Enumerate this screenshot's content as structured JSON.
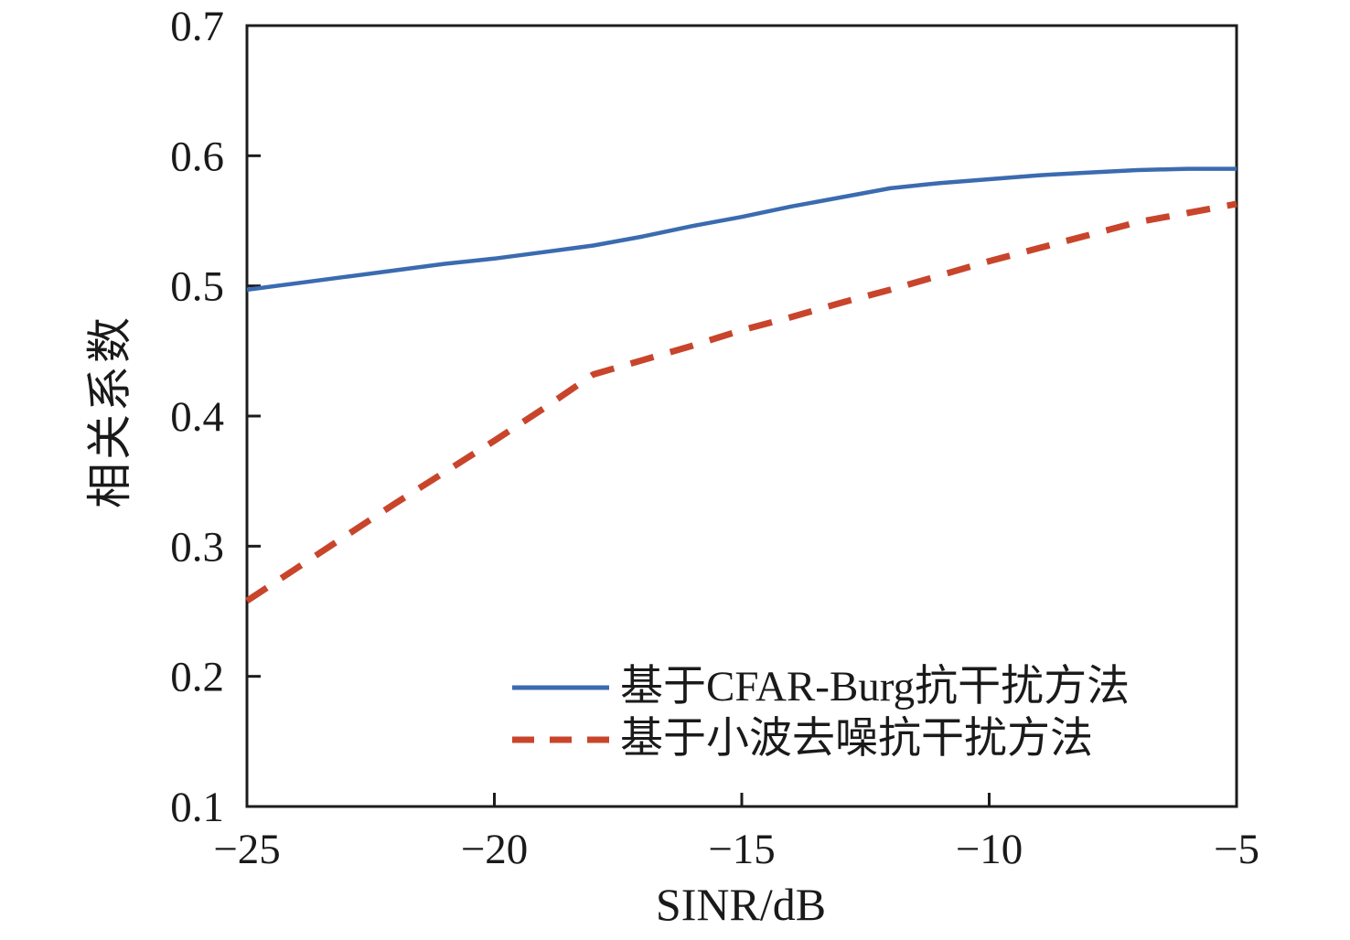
{
  "figure": {
    "background": "#ffffff",
    "axis_color": "#1c1c1c",
    "text_color": "#1a1a1a"
  },
  "chart_data": {
    "type": "line",
    "title": "",
    "xlabel": "SINR/dB",
    "ylabel": "相关系数",
    "xlim": [
      -25,
      -5
    ],
    "ylim": [
      0.1,
      0.7
    ],
    "grid": false,
    "legend_position": "inside-bottom-center",
    "x_ticks": [
      -25,
      -20,
      -15,
      -10,
      -5
    ],
    "x_tick_labels": [
      "−25",
      "−20",
      "−15",
      "−10",
      "−5"
    ],
    "y_ticks": [
      0.1,
      0.2,
      0.3,
      0.4,
      0.5,
      0.6,
      0.7
    ],
    "y_tick_labels": [
      "0.1",
      "0.2",
      "0.3",
      "0.4",
      "0.5",
      "0.6",
      "0.7"
    ],
    "x": [
      -25,
      -24,
      -23,
      -22,
      -21,
      -20,
      -19,
      -18,
      -17,
      -16,
      -15,
      -14,
      -13,
      -12,
      -11,
      -10,
      -9,
      -8,
      -7,
      -6,
      -5
    ],
    "series": [
      {
        "name": "基于CFAR-Burg抗干扰方法",
        "color": "#3B6BB0",
        "style": "solid",
        "values": [
          0.497,
          0.502,
          0.507,
          0.512,
          0.517,
          0.521,
          0.526,
          0.531,
          0.538,
          0.546,
          0.553,
          0.561,
          0.568,
          0.575,
          0.579,
          0.582,
          0.585,
          0.587,
          0.589,
          0.59,
          0.59
        ]
      },
      {
        "name": "基于小波去噪抗干扰方法",
        "color": "#C8452C",
        "style": "dashed",
        "values": [
          0.258,
          0.283,
          0.308,
          0.333,
          0.357,
          0.381,
          0.406,
          0.432,
          0.443,
          0.454,
          0.466,
          0.476,
          0.487,
          0.497,
          0.508,
          0.519,
          0.529,
          0.539,
          0.549,
          0.556,
          0.563
        ]
      }
    ]
  }
}
